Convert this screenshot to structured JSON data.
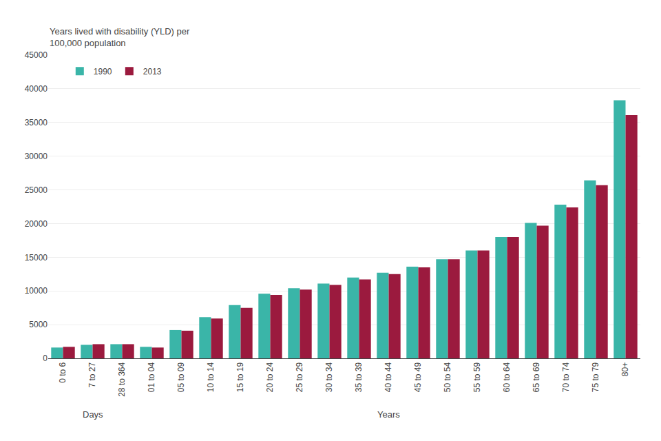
{
  "chart_data": {
    "type": "bar",
    "ylabel": "Years lived with disability (YLD) per\n100,000 population",
    "categories": [
      "0 to 6",
      "7 to 27",
      "28 to 364",
      "01 to 04",
      "05 to 09",
      "10 to 14",
      "15 to 19",
      "20 to 24",
      "25 to 29",
      "30 to 34",
      "35 to 39",
      "40 to 44",
      "45 to 49",
      "50 to 54",
      "55 to 59",
      "60 to 64",
      "65 to 69",
      "70 to 74",
      "75 to 79",
      "80+"
    ],
    "series": [
      {
        "name": "1990",
        "color": "#3ab5a8",
        "values": [
          1600,
          2000,
          2100,
          1700,
          4200,
          6100,
          7900,
          9600,
          10400,
          11100,
          12000,
          12700,
          13600,
          14700,
          16000,
          18000,
          20100,
          22800,
          26400,
          38300
        ]
      },
      {
        "name": "2013",
        "color": "#9b1a3e",
        "values": [
          1700,
          2100,
          2100,
          1600,
          4100,
          5900,
          7500,
          9400,
          10200,
          10900,
          11700,
          12500,
          13500,
          14700,
          16000,
          18000,
          19700,
          22400,
          25700,
          36100
        ]
      }
    ],
    "annotations": [
      {
        "text": "Days",
        "x": "7 to 27"
      },
      {
        "text": "Years",
        "x": "40 to 44"
      }
    ],
    "ylim": [
      0,
      45000
    ],
    "yticks": [
      0,
      5000,
      10000,
      15000,
      20000,
      25000,
      30000,
      35000,
      40000,
      45000
    ],
    "grid": true,
    "legend": "upper left"
  }
}
